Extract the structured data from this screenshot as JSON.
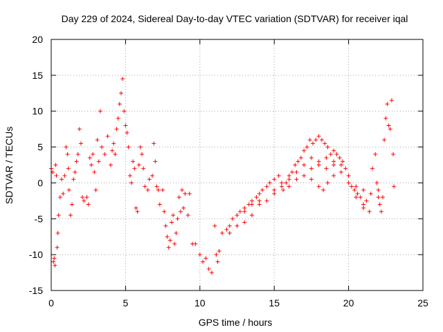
{
  "chart_data": {
    "type": "scatter",
    "title": "Day 229 of 2024, Sidereal Day-to-day VTEC variation (SDTVAR) for receiver iqal",
    "xlabel": "GPS time / hours",
    "ylabel": "SDTVAR / TECUs",
    "xlim": [
      0,
      25
    ],
    "ylim": [
      -15,
      20
    ],
    "xticks": [
      "0",
      "5",
      "10",
      "15",
      "20",
      "25"
    ],
    "yticks": [
      "-15",
      "-10",
      "-5",
      "0",
      "5",
      "10",
      "15",
      "20"
    ],
    "grid": true,
    "marker": "+",
    "series_color": "#ff0000",
    "series": [
      {
        "name": "iqal",
        "points": [
          [
            0.0,
            2.0
          ],
          [
            0.1,
            1.5
          ],
          [
            0.15,
            -11.0
          ],
          [
            0.2,
            -10.5
          ],
          [
            0.25,
            -11.5
          ],
          [
            0.3,
            2.5
          ],
          [
            0.35,
            1.0
          ],
          [
            0.4,
            -9.0
          ],
          [
            0.45,
            -7.0
          ],
          [
            0.5,
            -4.5
          ],
          [
            0.6,
            -2.0
          ],
          [
            0.7,
            0.5
          ],
          [
            0.8,
            -1.5
          ],
          [
            0.9,
            1.0
          ],
          [
            1.0,
            5.0
          ],
          [
            1.1,
            4.0
          ],
          [
            1.15,
            2.0
          ],
          [
            1.2,
            -1.0
          ],
          [
            1.3,
            -4.5
          ],
          [
            1.4,
            -3.0
          ],
          [
            1.5,
            0.5
          ],
          [
            1.6,
            1.5
          ],
          [
            1.7,
            3.0
          ],
          [
            1.8,
            4.0
          ],
          [
            1.9,
            7.5
          ],
          [
            2.0,
            5.5
          ],
          [
            2.1,
            -2.0
          ],
          [
            2.2,
            -2.5
          ],
          [
            2.4,
            -2.0
          ],
          [
            2.5,
            -3.0
          ],
          [
            2.6,
            3.5
          ],
          [
            2.7,
            2.5
          ],
          [
            2.8,
            4.0
          ],
          [
            2.9,
            1.5
          ],
          [
            3.0,
            -1.0
          ],
          [
            3.1,
            6.0
          ],
          [
            3.2,
            3.0
          ],
          [
            3.3,
            10.0
          ],
          [
            3.4,
            5.0
          ],
          [
            3.6,
            4.0
          ],
          [
            3.8,
            6.5
          ],
          [
            4.0,
            2.5
          ],
          [
            4.1,
            4.5
          ],
          [
            4.2,
            5.5
          ],
          [
            4.3,
            4.0
          ],
          [
            4.4,
            7.5
          ],
          [
            4.5,
            9.0
          ],
          [
            4.6,
            11.0
          ],
          [
            4.7,
            12.5
          ],
          [
            4.8,
            14.5
          ],
          [
            4.9,
            10.0
          ],
          [
            5.0,
            8.0
          ],
          [
            5.1,
            7.0
          ],
          [
            5.2,
            5.0
          ],
          [
            5.3,
            1.0
          ],
          [
            5.4,
            0.0
          ],
          [
            5.5,
            3.0
          ],
          [
            5.6,
            2.0
          ],
          [
            5.7,
            -3.5
          ],
          [
            5.8,
            -4.0
          ],
          [
            5.9,
            2.5
          ],
          [
            6.0,
            5.0
          ],
          [
            6.1,
            4.0
          ],
          [
            6.2,
            2.0
          ],
          [
            6.3,
            -0.5
          ],
          [
            6.5,
            -1.0
          ],
          [
            6.6,
            0.5
          ],
          [
            6.8,
            1.0
          ],
          [
            6.9,
            5.5
          ],
          [
            7.0,
            3.0
          ],
          [
            7.1,
            -0.5
          ],
          [
            7.2,
            -1.0
          ],
          [
            7.3,
            -3.0
          ],
          [
            7.5,
            -1.0
          ],
          [
            7.6,
            -4.0
          ],
          [
            7.7,
            -6.0
          ],
          [
            7.8,
            -7.5
          ],
          [
            7.9,
            -9.0
          ],
          [
            8.0,
            -8.0
          ],
          [
            8.1,
            -5.5
          ],
          [
            8.2,
            -4.5
          ],
          [
            8.3,
            -8.5
          ],
          [
            8.4,
            -7.0
          ],
          [
            8.5,
            -5.0
          ],
          [
            8.6,
            -2.0
          ],
          [
            8.7,
            -4.0
          ],
          [
            8.8,
            -1.0
          ],
          [
            8.9,
            -3.5
          ],
          [
            9.0,
            -1.5
          ],
          [
            9.2,
            -4.5
          ],
          [
            9.3,
            -1.5
          ],
          [
            9.5,
            -8.5
          ],
          [
            9.7,
            -8.5
          ],
          [
            10.0,
            -10.0
          ],
          [
            10.2,
            -11.0
          ],
          [
            10.4,
            -10.5
          ],
          [
            10.6,
            -12.0
          ],
          [
            10.8,
            -12.5
          ],
          [
            11.0,
            -6.0
          ],
          [
            11.1,
            -10.0
          ],
          [
            11.2,
            -11.0
          ],
          [
            11.3,
            -9.5
          ],
          [
            11.5,
            -7.0
          ],
          [
            11.8,
            -6.5
          ],
          [
            12.0,
            -6.0
          ],
          [
            12.2,
            -5.0
          ],
          [
            12.5,
            -4.5
          ],
          [
            12.7,
            -4.0
          ],
          [
            13.0,
            -3.5
          ],
          [
            13.3,
            -3.0
          ],
          [
            13.5,
            -2.5
          ],
          [
            13.8,
            -2.0
          ],
          [
            14.0,
            -1.5
          ],
          [
            14.2,
            -1.0
          ],
          [
            14.5,
            -0.5
          ],
          [
            14.7,
            0.0
          ],
          [
            15.0,
            0.5
          ],
          [
            15.3,
            1.0
          ],
          [
            15.5,
            -0.5
          ],
          [
            15.6,
            -1.0
          ],
          [
            15.8,
            0.0
          ],
          [
            16.0,
            1.0
          ],
          [
            16.2,
            1.5
          ],
          [
            16.4,
            2.5
          ],
          [
            16.6,
            3.0
          ],
          [
            16.8,
            3.5
          ],
          [
            17.0,
            4.5
          ],
          [
            17.2,
            5.0
          ],
          [
            17.4,
            6.0
          ],
          [
            17.6,
            5.5
          ],
          [
            17.8,
            6.0
          ],
          [
            18.0,
            6.5
          ],
          [
            18.2,
            6.0
          ],
          [
            18.4,
            5.5
          ],
          [
            18.6,
            5.0
          ],
          [
            18.8,
            4.0
          ],
          [
            19.0,
            4.5
          ],
          [
            19.2,
            4.0
          ],
          [
            19.4,
            3.5
          ],
          [
            19.6,
            3.0
          ],
          [
            19.8,
            2.0
          ],
          [
            20.0,
            1.0
          ],
          [
            20.2,
            -0.5
          ],
          [
            20.4,
            -1.0
          ],
          [
            20.6,
            -1.5
          ],
          [
            20.8,
            -2.0
          ],
          [
            21.0,
            -3.0
          ],
          [
            21.2,
            -2.5
          ],
          [
            21.4,
            -4.0
          ],
          [
            21.6,
            2.0
          ],
          [
            21.8,
            4.0
          ],
          [
            21.9,
            0.0
          ],
          [
            22.0,
            -2.0
          ],
          [
            22.1,
            -3.0
          ],
          [
            22.2,
            -4.0
          ],
          [
            22.4,
            6.0
          ],
          [
            22.5,
            9.0
          ],
          [
            22.6,
            11.0
          ],
          [
            22.7,
            8.0
          ],
          [
            22.8,
            7.5
          ],
          [
            22.9,
            11.5
          ],
          [
            23.0,
            4.0
          ],
          [
            23.05,
            -0.5
          ],
          [
            16.0,
            0.5
          ],
          [
            16.5,
            1.5
          ],
          [
            17.0,
            2.5
          ],
          [
            17.5,
            3.5
          ],
          [
            18.0,
            2.5
          ],
          [
            18.5,
            3.5
          ],
          [
            19.0,
            2.5
          ],
          [
            19.5,
            1.5
          ],
          [
            20.0,
            0.0
          ],
          [
            20.5,
            -2.0
          ],
          [
            21.0,
            -3.5
          ],
          [
            15.0,
            -1.0
          ],
          [
            15.5,
            0.0
          ],
          [
            16.0,
            -0.5
          ],
          [
            16.5,
            0.5
          ],
          [
            17.0,
            1.0
          ],
          [
            17.5,
            2.0
          ],
          [
            18.0,
            3.0
          ],
          [
            18.5,
            2.0
          ],
          [
            19.0,
            3.0
          ],
          [
            19.5,
            2.5
          ],
          [
            17.5,
            0.5
          ],
          [
            18.0,
            -0.5
          ],
          [
            18.3,
            -1.0
          ],
          [
            18.6,
            0.0
          ],
          [
            19.0,
            1.0
          ],
          [
            20.5,
            -0.5
          ],
          [
            21.0,
            -1.0
          ],
          [
            21.5,
            -1.5
          ],
          [
            22.0,
            -1.0
          ],
          [
            22.3,
            -2.0
          ],
          [
            12.0,
            -7.0
          ],
          [
            12.5,
            -6.0
          ],
          [
            13.0,
            -5.5
          ],
          [
            13.5,
            -4.5
          ],
          [
            14.0,
            -3.0
          ],
          [
            14.5,
            -2.5
          ],
          [
            15.0,
            -1.5
          ],
          [
            13.0,
            -4.0
          ],
          [
            13.5,
            -3.0
          ],
          [
            14.0,
            -2.5
          ]
        ]
      }
    ]
  }
}
